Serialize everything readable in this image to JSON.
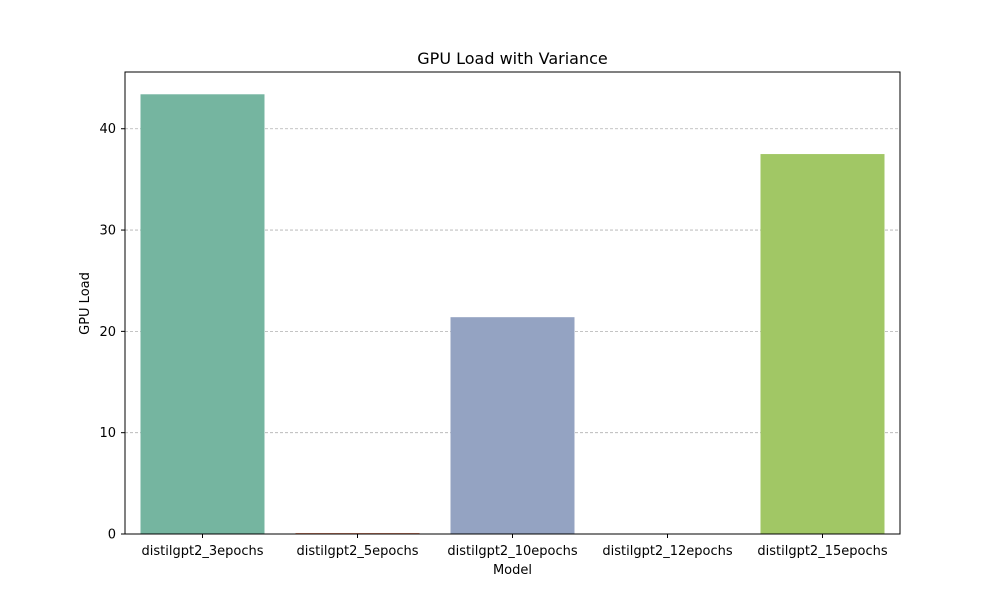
{
  "chart_data": {
    "type": "bar",
    "title": "GPU Load with Variance",
    "xlabel": "Model",
    "ylabel": "GPU Load",
    "categories": [
      "distilgpt2_3epochs",
      "distilgpt2_5epochs",
      "distilgpt2_10epochs",
      "distilgpt2_12epochs",
      "distilgpt2_15epochs"
    ],
    "values": [
      43.4,
      0.1,
      21.4,
      0.0,
      37.5
    ],
    "colors": [
      "#75b5a0",
      "#e48d6f",
      "#94a3c2",
      "#d593bc",
      "#a1c765"
    ],
    "ylim": [
      0,
      45.6
    ],
    "yticks": [
      0,
      10,
      20,
      30,
      40
    ],
    "grid": {
      "axis": "y",
      "style": "dashed",
      "color": "#b0b0b0"
    },
    "legend": "none"
  }
}
